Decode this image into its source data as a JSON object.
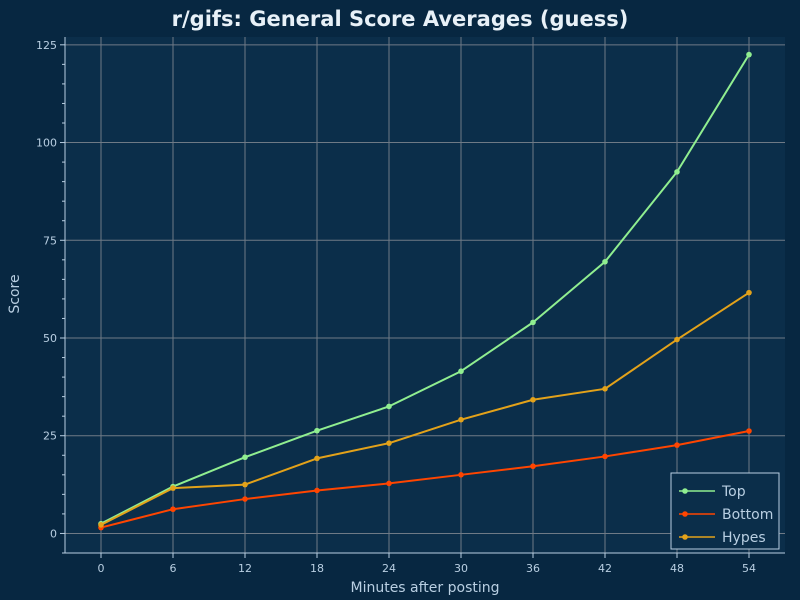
{
  "chart_data": {
    "type": "line",
    "title": "r/gifs: General Score Averages (guess)",
    "xlabel": "Minutes after posting",
    "ylabel": "Score",
    "x": [
      0,
      6,
      12,
      18,
      24,
      30,
      36,
      42,
      48,
      54
    ],
    "xticks": [
      0,
      6,
      12,
      18,
      24,
      30,
      36,
      42,
      48,
      54
    ],
    "yticks": [
      0,
      25,
      50,
      75,
      100,
      125
    ],
    "xlim": [
      -3,
      57
    ],
    "ylim": [
      -5,
      127
    ],
    "grid": true,
    "legend_position": "bottom-right",
    "series": [
      {
        "name": "Top",
        "color": "#90ee90",
        "values": [
          2.5,
          12,
          19.5,
          26.3,
          32.5,
          41.5,
          54,
          69.5,
          92.5,
          122.5
        ]
      },
      {
        "name": "Bottom",
        "color": "#ff4500",
        "values": [
          1.5,
          6.2,
          8.8,
          11,
          12.8,
          15,
          17.2,
          19.7,
          22.6,
          26.2
        ]
      },
      {
        "name": "Hypes",
        "color": "#e3a21a",
        "values": [
          2.2,
          11.6,
          12.5,
          19.2,
          23.1,
          29.1,
          34.2,
          37,
          49.6,
          61.6
        ]
      }
    ]
  },
  "style": {
    "background": "#072741",
    "plot_background": "#0b2e4a",
    "grid_color": "#6f7a86",
    "text_color": "#b9cfe2",
    "title_color": "#e8f1f8"
  }
}
